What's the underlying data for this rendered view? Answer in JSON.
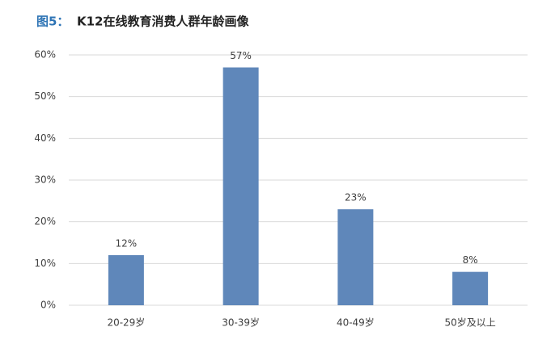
{
  "chart_data": {
    "type": "bar",
    "figure_label": "图5：",
    "title": "K12在线教育消费人群年龄画像",
    "categories": [
      "20-29岁",
      "30-39岁",
      "40-49岁",
      "50岁及以上"
    ],
    "values": [
      12,
      57,
      23,
      8
    ],
    "value_labels": [
      "12%",
      "57%",
      "23%",
      "8%"
    ],
    "color": "#5f87ba",
    "ylim": [
      0,
      60
    ],
    "yticks": [
      {
        "value": 0,
        "label": "0%"
      },
      {
        "value": 10,
        "label": "10%"
      },
      {
        "value": 20,
        "label": "20%"
      },
      {
        "value": 30,
        "label": "30%"
      },
      {
        "value": 40,
        "label": "40%"
      },
      {
        "value": 50,
        "label": "50%"
      },
      {
        "value": 60,
        "label": "60%"
      }
    ],
    "grid": true
  }
}
